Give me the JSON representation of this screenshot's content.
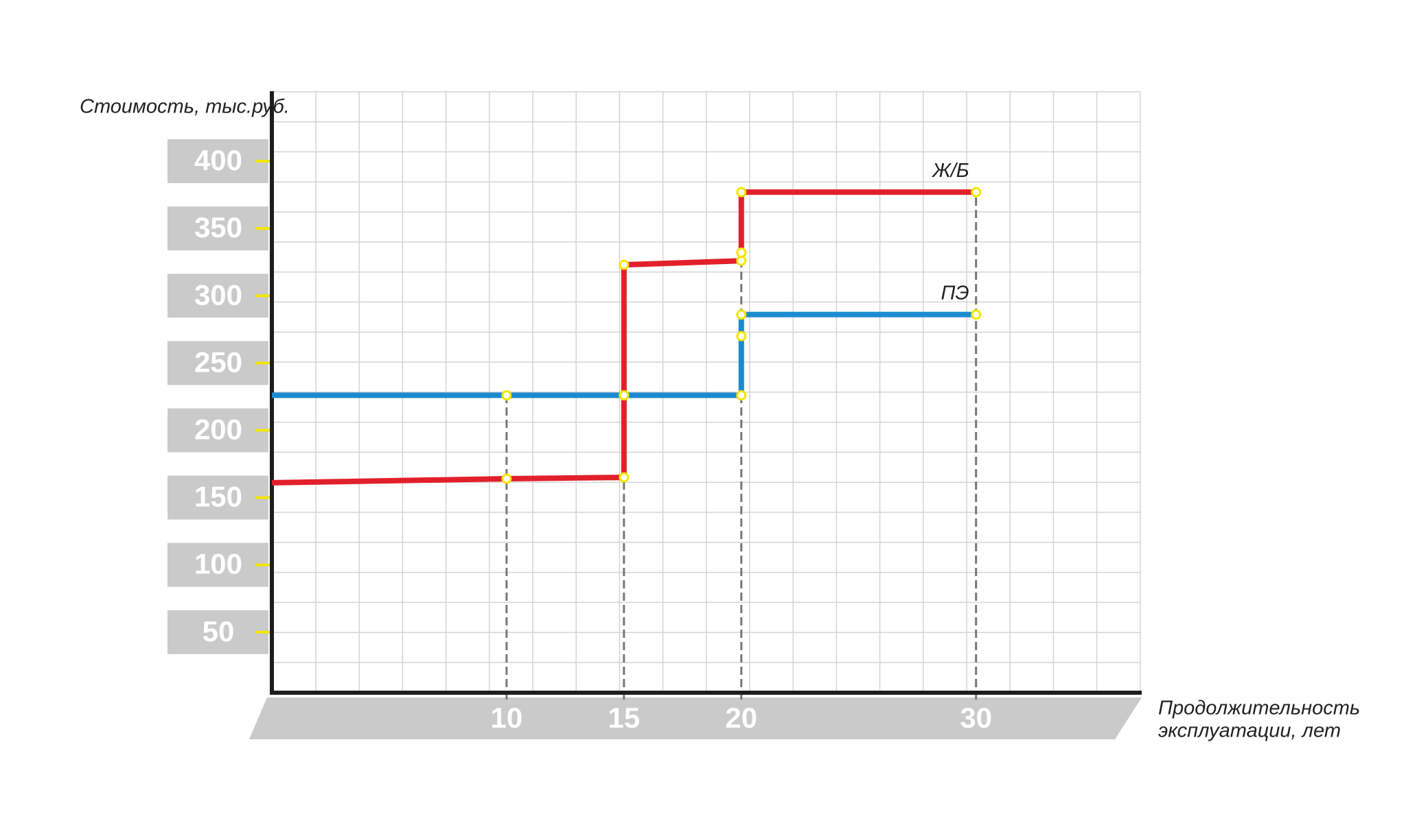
{
  "chart_data": {
    "type": "line",
    "y_label": "Стоимость, тыс.руб.",
    "x_label": [
      "Продолжительность",
      "эксплуатации, лет"
    ],
    "xlim": [
      0,
      37
    ],
    "xticks": [
      10,
      15,
      20,
      30
    ],
    "ylim": [
      5,
      452
    ],
    "yticks": [
      50,
      100,
      150,
      200,
      250,
      300,
      350,
      400
    ],
    "grid": true,
    "series": [
      {
        "name": "ПЭ",
        "color": "#1b8bd0",
        "x": [
          0,
          10,
          15,
          20,
          20,
          20,
          30
        ],
        "values": [
          226,
          226,
          226,
          226,
          270,
          286,
          286
        ]
      },
      {
        "name": "Ж/Б",
        "color": "#e2202b",
        "x": [
          0,
          10,
          15,
          15,
          15,
          20,
          20,
          20,
          30
        ],
        "values": [
          161,
          164,
          165,
          226,
          323,
          326,
          332,
          377,
          377
        ]
      }
    ]
  }
}
